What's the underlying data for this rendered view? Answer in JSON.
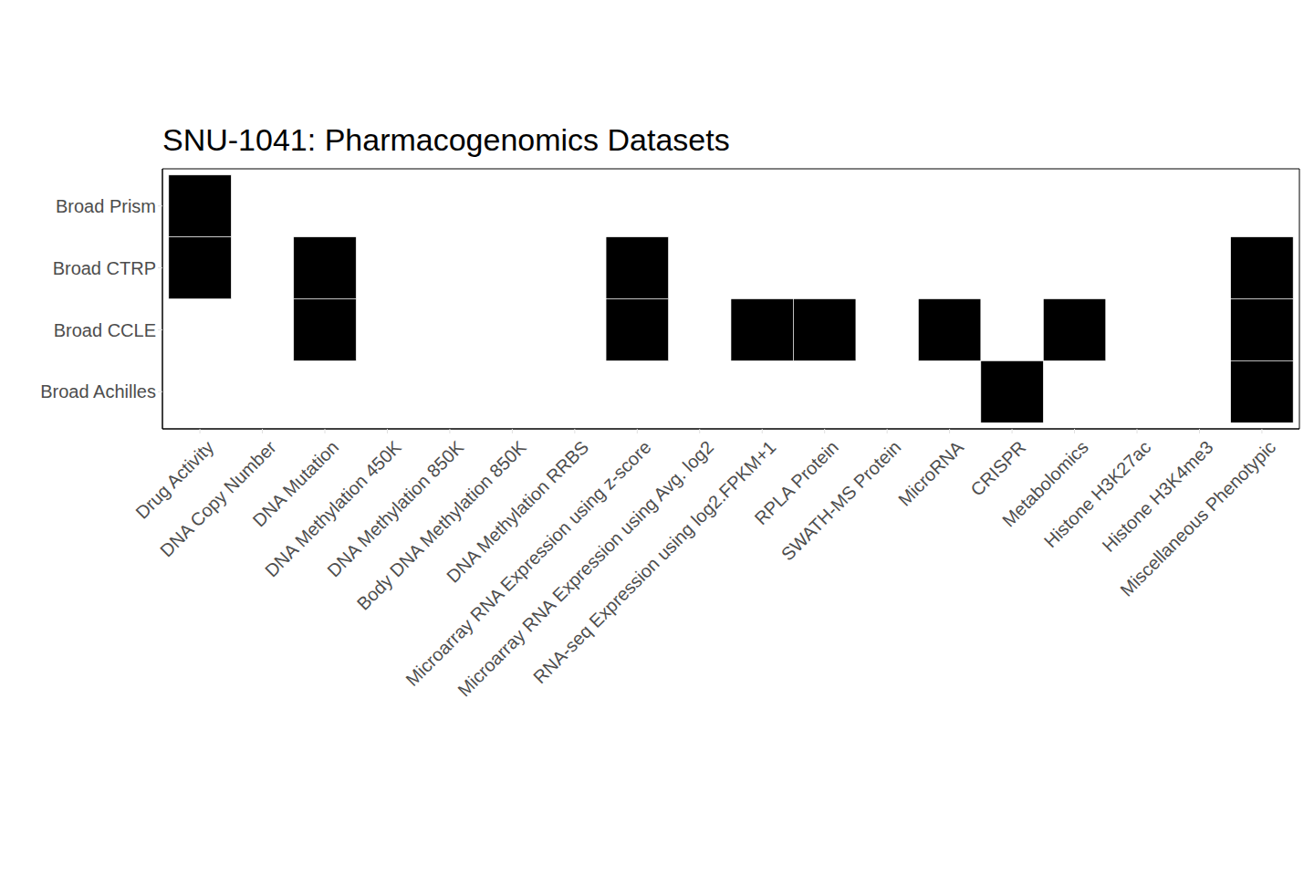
{
  "chart_data": {
    "type": "heatmap",
    "title": "SNU-1041: Pharmacogenomics Datasets",
    "categories": [
      "Drug Activity",
      "DNA Copy Number",
      "DNA Mutation",
      "DNA Methylation 450K",
      "DNA Methylation 850K",
      "Body DNA Methylation 850K",
      "DNA Methylation RRBS",
      "Microarray RNA Expression using z-score",
      "Microarray RNA Expression using Avg. log2",
      "RNA-seq Expression using log2.FPKM+1",
      "RPLA Protein",
      "SWATH-MS Protein",
      "MicroRNA",
      "CRISPR",
      "Metabolomics",
      "Histone H3K27ac",
      "Histone H3K4me3",
      "Miscellaneous Phenotypic"
    ],
    "rows": [
      "Broad Prism",
      "Broad CTRP",
      "Broad CCLE",
      "Broad Achilles"
    ],
    "cells": [
      [
        1,
        0,
        0,
        0,
        0,
        0,
        0,
        0,
        0,
        0,
        0,
        0,
        0,
        0,
        0,
        0,
        0,
        0
      ],
      [
        1,
        0,
        1,
        0,
        0,
        0,
        0,
        1,
        0,
        0,
        0,
        0,
        0,
        0,
        0,
        0,
        0,
        1
      ],
      [
        0,
        0,
        1,
        0,
        0,
        0,
        0,
        1,
        0,
        1,
        1,
        0,
        1,
        0,
        1,
        0,
        0,
        1
      ],
      [
        0,
        0,
        0,
        0,
        0,
        0,
        0,
        0,
        0,
        0,
        0,
        0,
        0,
        1,
        0,
        0,
        0,
        1
      ]
    ],
    "color": "#000000",
    "grid": false
  }
}
